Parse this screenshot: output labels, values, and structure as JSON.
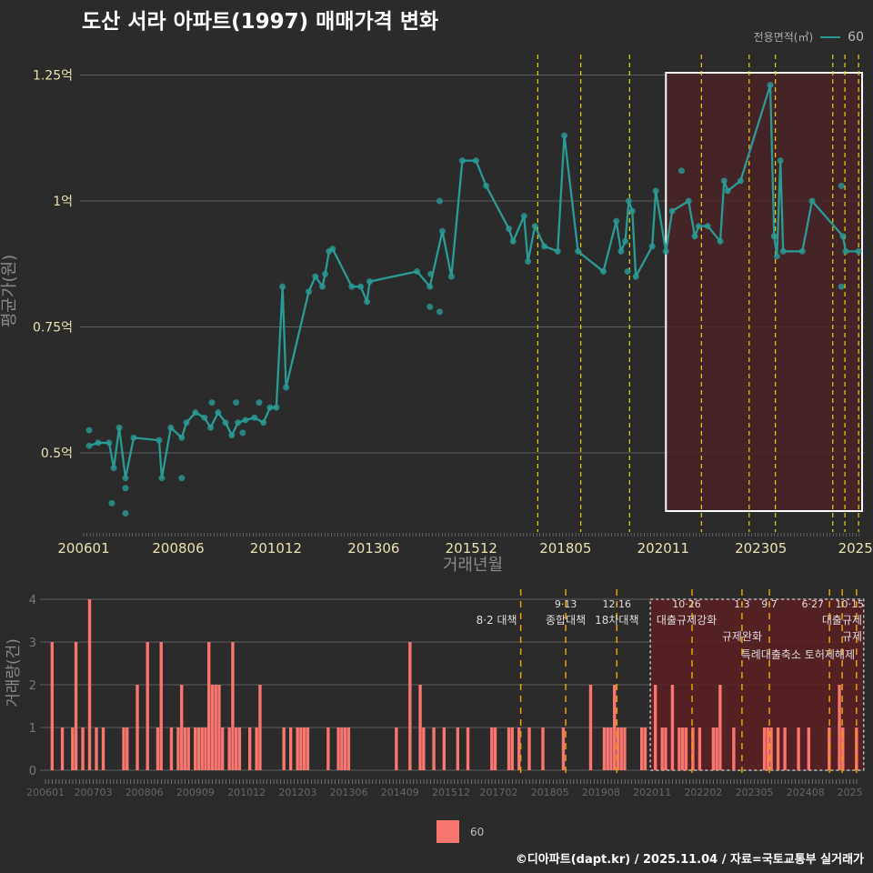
{
  "title": "도산 서라 아파트(1997) 매매가격 변화",
  "legend": {
    "title": "전용면적(㎡)",
    "series": "60"
  },
  "credit": "©디아파트(dapt.kr) / 2025.11.04 / 자료=국토교통부 실거래가",
  "colors": {
    "line": "#2a9a94",
    "bar": "#f8766d",
    "highlight": "#4a2328",
    "policy_top": "#e6d200",
    "policy_bottom": "#e8a200"
  },
  "chart_data": [
    {
      "type": "line",
      "title": "평균가",
      "xlabel": "거래년월",
      "ylabel": "평균가(원)",
      "ylim": [
        0.35,
        1.27
      ],
      "yticks": [
        {
          "v": 0.5,
          "label": "0.5억"
        },
        {
          "v": 0.75,
          "label": "0.75억"
        },
        {
          "v": 1.0,
          "label": "1억"
        },
        {
          "v": 1.25,
          "label": "1.25억"
        }
      ],
      "xticks": [
        {
          "t": 2006.0,
          "label": "200601"
        },
        {
          "t": 2008.42,
          "label": "200806"
        },
        {
          "t": 2010.92,
          "label": "201012"
        },
        {
          "t": 2013.42,
          "label": "201306"
        },
        {
          "t": 2015.92,
          "label": "201512"
        },
        {
          "t": 2018.33,
          "label": "201805"
        },
        {
          "t": 2020.83,
          "label": "202011"
        },
        {
          "t": 2023.33,
          "label": "202305"
        },
        {
          "t": 2025.75,
          "label": "2025"
        }
      ],
      "xlim": [
        2006.0,
        2025.85
      ],
      "highlight_range": [
        2020.9,
        2025.85
      ],
      "series_name": "60",
      "line": [
        [
          2006.14,
          0.514
        ],
        [
          2006.37,
          0.52
        ],
        [
          2006.65,
          0.52
        ],
        [
          2006.77,
          0.47
        ],
        [
          2006.91,
          0.55
        ],
        [
          2007.07,
          0.45
        ],
        [
          2007.28,
          0.53
        ],
        [
          2007.93,
          0.525
        ],
        [
          2008.0,
          0.45
        ],
        [
          2008.23,
          0.55
        ],
        [
          2008.51,
          0.53
        ],
        [
          2008.63,
          0.56
        ],
        [
          2008.86,
          0.58
        ],
        [
          2009.09,
          0.57
        ],
        [
          2009.25,
          0.55
        ],
        [
          2009.44,
          0.58
        ],
        [
          2009.63,
          0.56
        ],
        [
          2009.79,
          0.535
        ],
        [
          2009.95,
          0.56
        ],
        [
          2010.14,
          0.565
        ],
        [
          2010.37,
          0.57
        ],
        [
          2010.6,
          0.56
        ],
        [
          2010.77,
          0.59
        ],
        [
          2010.93,
          0.59
        ],
        [
          2011.09,
          0.83
        ],
        [
          2011.18,
          0.63
        ],
        [
          2011.76,
          0.82
        ],
        [
          2011.93,
          0.85
        ],
        [
          2012.11,
          0.83
        ],
        [
          2012.18,
          0.855
        ],
        [
          2012.28,
          0.9
        ],
        [
          2012.37,
          0.905
        ],
        [
          2012.86,
          0.83
        ],
        [
          2013.09,
          0.83
        ],
        [
          2013.25,
          0.8
        ],
        [
          2013.32,
          0.84
        ],
        [
          2014.53,
          0.86
        ],
        [
          2014.86,
          0.83
        ],
        [
          2015.18,
          0.94
        ],
        [
          2015.41,
          0.85
        ],
        [
          2015.69,
          1.08
        ],
        [
          2016.04,
          1.08
        ],
        [
          2016.3,
          1.03
        ],
        [
          2016.88,
          0.945
        ],
        [
          2016.99,
          0.92
        ],
        [
          2017.27,
          0.97
        ],
        [
          2017.37,
          0.88
        ],
        [
          2017.55,
          0.95
        ],
        [
          2017.79,
          0.91
        ],
        [
          2018.13,
          0.9
        ],
        [
          2018.3,
          1.13
        ],
        [
          2018.65,
          0.9
        ],
        [
          2019.3,
          0.86
        ],
        [
          2019.63,
          0.96
        ],
        [
          2019.75,
          0.9
        ],
        [
          2019.86,
          0.92
        ],
        [
          2019.95,
          1.0
        ],
        [
          2020.04,
          0.98
        ],
        [
          2020.13,
          0.85
        ],
        [
          2020.55,
          0.91
        ],
        [
          2020.64,
          1.02
        ],
        [
          2020.9,
          0.9
        ],
        [
          2021.06,
          0.98
        ],
        [
          2021.48,
          1.0
        ],
        [
          2021.64,
          0.93
        ],
        [
          2021.74,
          0.95
        ],
        [
          2021.97,
          0.95
        ],
        [
          2022.29,
          0.92
        ],
        [
          2022.39,
          1.04
        ],
        [
          2022.48,
          1.02
        ],
        [
          2022.81,
          1.04
        ],
        [
          2023.57,
          1.23
        ],
        [
          2023.67,
          0.93
        ],
        [
          2023.74,
          0.89
        ],
        [
          2023.83,
          1.08
        ],
        [
          2023.9,
          0.9
        ],
        [
          2024.39,
          0.9
        ],
        [
          2024.64,
          1.0
        ],
        [
          2025.43,
          0.93
        ],
        [
          2025.5,
          0.9
        ],
        [
          2025.83,
          0.9
        ]
      ],
      "points_extra": [
        [
          2006.14,
          0.545
        ],
        [
          2006.72,
          0.4
        ],
        [
          2007.07,
          0.43
        ],
        [
          2007.07,
          0.38
        ],
        [
          2008.51,
          0.45
        ],
        [
          2009.28,
          0.6
        ],
        [
          2009.9,
          0.6
        ],
        [
          2010.07,
          0.54
        ],
        [
          2010.49,
          0.6
        ],
        [
          2014.86,
          0.79
        ],
        [
          2015.11,
          0.78
        ],
        [
          2015.11,
          1.0
        ],
        [
          2014.88,
          0.855
        ],
        [
          2021.3,
          1.06
        ],
        [
          2025.39,
          1.03
        ],
        [
          2025.39,
          0.83
        ],
        [
          2019.92,
          0.86
        ]
      ]
    },
    {
      "type": "bar",
      "title": "거래량",
      "ylabel": "거래량(건)",
      "ylim": [
        0,
        4
      ],
      "yticks": [
        0,
        1,
        2,
        3,
        4
      ],
      "xlabel_start": "200601",
      "xticks": [
        {
          "m": 0,
          "label": "200601"
        },
        {
          "m": 14,
          "label": "200703"
        },
        {
          "m": 29,
          "label": "200806"
        },
        {
          "m": 44,
          "label": "200909"
        },
        {
          "m": 59,
          "label": "201012"
        },
        {
          "m": 74,
          "label": "201203"
        },
        {
          "m": 89,
          "label": "201306"
        },
        {
          "m": 104,
          "label": "201409"
        },
        {
          "m": 119,
          "label": "201512"
        },
        {
          "m": 133,
          "label": "201702"
        },
        {
          "m": 148,
          "label": "201805"
        },
        {
          "m": 163,
          "label": "201908"
        },
        {
          "m": 178,
          "label": "202011"
        },
        {
          "m": 193,
          "label": "202202"
        },
        {
          "m": 208,
          "label": "202305"
        },
        {
          "m": 223,
          "label": "202408"
        },
        {
          "m": 236,
          "label": "2025"
        }
      ],
      "months_total": 239,
      "highlight_range_months": [
        178,
        239
      ],
      "bars": [
        [
          2,
          3
        ],
        [
          5,
          1
        ],
        [
          8,
          1
        ],
        [
          9,
          3
        ],
        [
          11,
          1
        ],
        [
          13,
          4
        ],
        [
          15,
          1
        ],
        [
          17,
          1
        ],
        [
          23,
          1
        ],
        [
          24,
          1
        ],
        [
          27,
          2
        ],
        [
          30,
          3
        ],
        [
          33,
          1
        ],
        [
          34,
          3
        ],
        [
          37,
          1
        ],
        [
          39,
          1
        ],
        [
          40,
          2
        ],
        [
          41,
          1
        ],
        [
          42,
          1
        ],
        [
          44,
          1
        ],
        [
          45,
          1
        ],
        [
          46,
          1
        ],
        [
          47,
          1
        ],
        [
          48,
          3
        ],
        [
          49,
          2
        ],
        [
          50,
          2
        ],
        [
          51,
          2
        ],
        [
          52,
          1
        ],
        [
          54,
          1
        ],
        [
          55,
          3
        ],
        [
          56,
          1
        ],
        [
          57,
          1
        ],
        [
          60,
          1
        ],
        [
          62,
          1
        ],
        [
          63,
          2
        ],
        [
          70,
          1
        ],
        [
          72,
          1
        ],
        [
          74,
          1
        ],
        [
          75,
          1
        ],
        [
          76,
          1
        ],
        [
          77,
          1
        ],
        [
          83,
          1
        ],
        [
          86,
          1
        ],
        [
          87,
          1
        ],
        [
          88,
          1
        ],
        [
          89,
          1
        ],
        [
          103,
          1
        ],
        [
          107,
          3
        ],
        [
          110,
          2
        ],
        [
          111,
          1
        ],
        [
          114,
          1
        ],
        [
          117,
          1
        ],
        [
          121,
          1
        ],
        [
          124,
          1
        ],
        [
          131,
          1
        ],
        [
          132,
          1
        ],
        [
          136,
          1
        ],
        [
          137,
          1
        ],
        [
          139,
          1
        ],
        [
          142,
          1
        ],
        [
          146,
          1
        ],
        [
          152,
          1
        ],
        [
          160,
          2
        ],
        [
          164,
          1
        ],
        [
          165,
          1
        ],
        [
          166,
          1
        ],
        [
          167,
          2
        ],
        [
          168,
          1
        ],
        [
          169,
          1
        ],
        [
          170,
          1
        ],
        [
          175,
          1
        ],
        [
          176,
          1
        ],
        [
          179,
          2
        ],
        [
          181,
          1
        ],
        [
          182,
          1
        ],
        [
          184,
          2
        ],
        [
          186,
          1
        ],
        [
          187,
          1
        ],
        [
          188,
          1
        ],
        [
          190,
          1
        ],
        [
          192,
          1
        ],
        [
          196,
          1
        ],
        [
          197,
          1
        ],
        [
          198,
          2
        ],
        [
          202,
          1
        ],
        [
          211,
          1
        ],
        [
          212,
          1
        ],
        [
          213,
          1
        ],
        [
          215,
          1
        ],
        [
          217,
          1
        ],
        [
          221,
          1
        ],
        [
          224,
          1
        ],
        [
          230,
          1
        ],
        [
          233,
          2
        ],
        [
          234,
          1
        ],
        [
          238,
          1
        ]
      ]
    }
  ],
  "policies": [
    {
      "t": 2017.62,
      "date": "8·2",
      "name": "대책"
    },
    {
      "t": 2018.72,
      "date": "9·13",
      "name": "종합대책"
    },
    {
      "t": 2019.97,
      "date": "12·16",
      "name": "18차대책"
    },
    {
      "t": 2021.81,
      "date": "10·26",
      "name": "대출규제강화"
    },
    {
      "t": 2023.03,
      "date": "1·3",
      "name": "규제완화"
    },
    {
      "t": 2023.7,
      "date": "9·7",
      "name": "특례대출축소 토허제해제"
    },
    {
      "t": 2025.17,
      "date": "6·27",
      "name": "대출규제"
    },
    {
      "t": 2025.48,
      "date": "",
      "name": ""
    },
    {
      "t": 2025.83,
      "date": "10·15",
      "name": "규제"
    }
  ]
}
